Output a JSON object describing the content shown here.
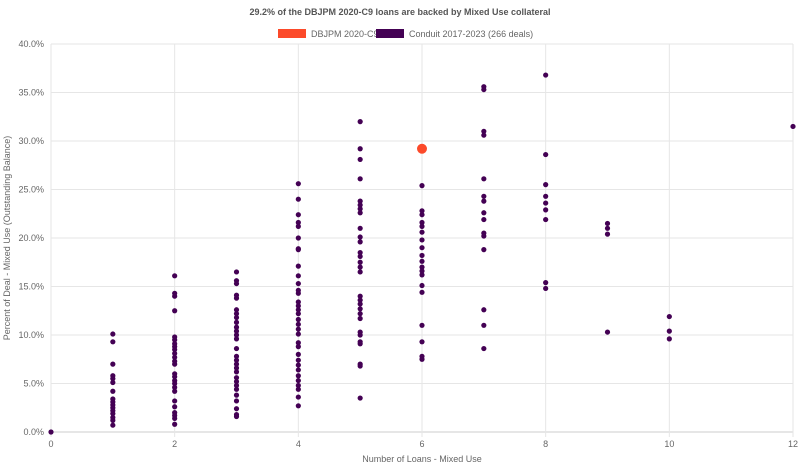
{
  "chart_data": {
    "type": "scatter",
    "title": "29.2% of the DBJPM 2020-C9 loans are backed by Mixed Use collateral",
    "xlabel": "Number of Loans - Mixed Use",
    "ylabel": "Percent of Deal - Mixed Use (Outstanding Balance)",
    "xlim": [
      0,
      12
    ],
    "ylim": [
      0,
      40
    ],
    "x_ticks": [
      0,
      2,
      4,
      6,
      8,
      10,
      12
    ],
    "y_ticks": [
      "0.0%",
      "5.0%",
      "10.0%",
      "15.0%",
      "20.0%",
      "25.0%",
      "30.0%",
      "35.0%",
      "40.0%"
    ],
    "grid": true,
    "legend_position": "top",
    "series": [
      {
        "name": "DBJPM 2020-C9",
        "color": "#fc4a2a",
        "points": [
          [
            6,
            29.2
          ]
        ]
      },
      {
        "name": "Conduit 2017-2023 (266 deals)",
        "color": "#440154",
        "points": [
          [
            0,
            0.0
          ],
          [
            1,
            10.1
          ],
          [
            1,
            9.3
          ],
          [
            1,
            7.0
          ],
          [
            1,
            5.8
          ],
          [
            1,
            5.5
          ],
          [
            1,
            5.1
          ],
          [
            1,
            4.2
          ],
          [
            1,
            3.4
          ],
          [
            1,
            3.1
          ],
          [
            1,
            2.8
          ],
          [
            1,
            2.5
          ],
          [
            1,
            2.2
          ],
          [
            1,
            1.9
          ],
          [
            1,
            1.5
          ],
          [
            1,
            1.2
          ],
          [
            1,
            0.7
          ],
          [
            2,
            16.1
          ],
          [
            2,
            14.3
          ],
          [
            2,
            14.0
          ],
          [
            2,
            12.5
          ],
          [
            2,
            9.8
          ],
          [
            2,
            9.5
          ],
          [
            2,
            9.1
          ],
          [
            2,
            8.8
          ],
          [
            2,
            8.5
          ],
          [
            2,
            8.1
          ],
          [
            2,
            7.7
          ],
          [
            2,
            7.3
          ],
          [
            2,
            7.0
          ],
          [
            2,
            6.0
          ],
          [
            2,
            5.7
          ],
          [
            2,
            5.3
          ],
          [
            2,
            5.0
          ],
          [
            2,
            4.6
          ],
          [
            2,
            4.2
          ],
          [
            2,
            3.2
          ],
          [
            2,
            2.6
          ],
          [
            2,
            2.0
          ],
          [
            2,
            1.7
          ],
          [
            2,
            1.4
          ],
          [
            2,
            0.8
          ],
          [
            3,
            16.5
          ],
          [
            3,
            15.6
          ],
          [
            3,
            15.3
          ],
          [
            3,
            14.1
          ],
          [
            3,
            13.8
          ],
          [
            3,
            12.6
          ],
          [
            3,
            12.2
          ],
          [
            3,
            11.8
          ],
          [
            3,
            11.3
          ],
          [
            3,
            10.8
          ],
          [
            3,
            10.4
          ],
          [
            3,
            10.0
          ],
          [
            3,
            9.6
          ],
          [
            3,
            8.6
          ],
          [
            3,
            7.8
          ],
          [
            3,
            7.4
          ],
          [
            3,
            7.0
          ],
          [
            3,
            6.6
          ],
          [
            3,
            6.2
          ],
          [
            3,
            5.6
          ],
          [
            3,
            5.2
          ],
          [
            3,
            4.8
          ],
          [
            3,
            4.4
          ],
          [
            3,
            3.8
          ],
          [
            3,
            3.2
          ],
          [
            3,
            2.4
          ],
          [
            3,
            1.8
          ],
          [
            3,
            1.6
          ],
          [
            4,
            25.6
          ],
          [
            4,
            24.0
          ],
          [
            4,
            22.4
          ],
          [
            4,
            21.6
          ],
          [
            4,
            21.2
          ],
          [
            4,
            20.0
          ],
          [
            4,
            18.9
          ],
          [
            4,
            18.8
          ],
          [
            4,
            17.1
          ],
          [
            4,
            16.1
          ],
          [
            4,
            15.3
          ],
          [
            4,
            14.6
          ],
          [
            4,
            14.3
          ],
          [
            4,
            13.4
          ],
          [
            4,
            13.0
          ],
          [
            4,
            12.6
          ],
          [
            4,
            12.2
          ],
          [
            4,
            11.6
          ],
          [
            4,
            11.1
          ],
          [
            4,
            10.6
          ],
          [
            4,
            10.1
          ],
          [
            4,
            9.2
          ],
          [
            4,
            8.8
          ],
          [
            4,
            8.0
          ],
          [
            4,
            7.4
          ],
          [
            4,
            6.9
          ],
          [
            4,
            6.4
          ],
          [
            4,
            5.8
          ],
          [
            4,
            5.3
          ],
          [
            4,
            4.8
          ],
          [
            4,
            4.4
          ],
          [
            4,
            3.6
          ],
          [
            4,
            2.7
          ],
          [
            5,
            32.0
          ],
          [
            5,
            29.2
          ],
          [
            5,
            28.1
          ],
          [
            5,
            26.1
          ],
          [
            5,
            23.8
          ],
          [
            5,
            23.4
          ],
          [
            5,
            23.0
          ],
          [
            5,
            22.6
          ],
          [
            5,
            21.0
          ],
          [
            5,
            20.1
          ],
          [
            5,
            19.6
          ],
          [
            5,
            18.5
          ],
          [
            5,
            18.1
          ],
          [
            5,
            17.5
          ],
          [
            5,
            17.0
          ],
          [
            5,
            16.5
          ],
          [
            5,
            14.0
          ],
          [
            5,
            13.6
          ],
          [
            5,
            13.2
          ],
          [
            5,
            12.7
          ],
          [
            5,
            12.2
          ],
          [
            5,
            11.7
          ],
          [
            5,
            10.3
          ],
          [
            5,
            10.0
          ],
          [
            5,
            9.3
          ],
          [
            5,
            9.1
          ],
          [
            5,
            7.0
          ],
          [
            5,
            6.8
          ],
          [
            5,
            3.5
          ],
          [
            6,
            25.4
          ],
          [
            6,
            22.8
          ],
          [
            6,
            22.4
          ],
          [
            6,
            21.6
          ],
          [
            6,
            21.2
          ],
          [
            6,
            20.6
          ],
          [
            6,
            19.8
          ],
          [
            6,
            19.0
          ],
          [
            6,
            18.2
          ],
          [
            6,
            17.6
          ],
          [
            6,
            17.0
          ],
          [
            6,
            16.6
          ],
          [
            6,
            16.2
          ],
          [
            6,
            15.1
          ],
          [
            6,
            14.4
          ],
          [
            6,
            11.0
          ],
          [
            6,
            9.3
          ],
          [
            6,
            7.8
          ],
          [
            6,
            7.5
          ],
          [
            7,
            35.6
          ],
          [
            7,
            35.3
          ],
          [
            7,
            31.0
          ],
          [
            7,
            30.6
          ],
          [
            7,
            26.1
          ],
          [
            7,
            24.3
          ],
          [
            7,
            23.8
          ],
          [
            7,
            22.6
          ],
          [
            7,
            21.9
          ],
          [
            7,
            20.5
          ],
          [
            7,
            20.2
          ],
          [
            7,
            18.8
          ],
          [
            7,
            12.6
          ],
          [
            7,
            11.0
          ],
          [
            7,
            8.6
          ],
          [
            8,
            36.8
          ],
          [
            8,
            28.6
          ],
          [
            8,
            25.5
          ],
          [
            8,
            24.3
          ],
          [
            8,
            23.6
          ],
          [
            8,
            22.9
          ],
          [
            8,
            21.9
          ],
          [
            8,
            15.4
          ],
          [
            8,
            14.8
          ],
          [
            9,
            21.5
          ],
          [
            9,
            21.0
          ],
          [
            9,
            20.4
          ],
          [
            9,
            10.3
          ],
          [
            10,
            11.9
          ],
          [
            10,
            10.4
          ],
          [
            10,
            9.6
          ],
          [
            12,
            31.5
          ]
        ]
      }
    ]
  }
}
